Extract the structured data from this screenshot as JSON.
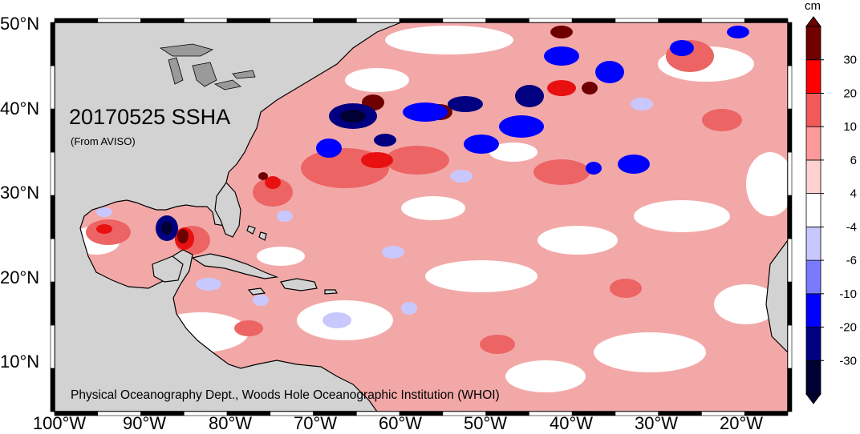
{
  "map": {
    "title": "20170525 SSHA",
    "source": "(From AVISO)",
    "credit": "Physical Oceanography Dept., Woods Hole Oceanographic Institution (WHOI)",
    "lat_labels": [
      "50°N",
      "40°N",
      "30°N",
      "20°N",
      "10°N"
    ],
    "lon_labels": [
      "100°W",
      "90°W",
      "80°W",
      "70°W",
      "60°W",
      "50°W",
      "40°W",
      "30°W",
      "20°W"
    ],
    "extent": {
      "lon": [
        -100,
        -15
      ],
      "lat": [
        5,
        50
      ]
    }
  },
  "colorbar": {
    "unit": "cm",
    "labels": [
      "30",
      "20",
      "10",
      "6",
      "4",
      "-4",
      "-6",
      "-10",
      "-20",
      "-30"
    ],
    "colors": [
      "#000033",
      "#000080",
      "#0000ff",
      "#7a7aff",
      "#c8c8ff",
      "#ffffff",
      "#ffd0d0",
      "#ff9a9a",
      "#f25a5a",
      "#ff0000",
      "#6e0000"
    ]
  },
  "colors": {
    "land": "#d2d2d2",
    "ocean_base": "#f2a4a4",
    "lakes": "#9a9a9a"
  }
}
